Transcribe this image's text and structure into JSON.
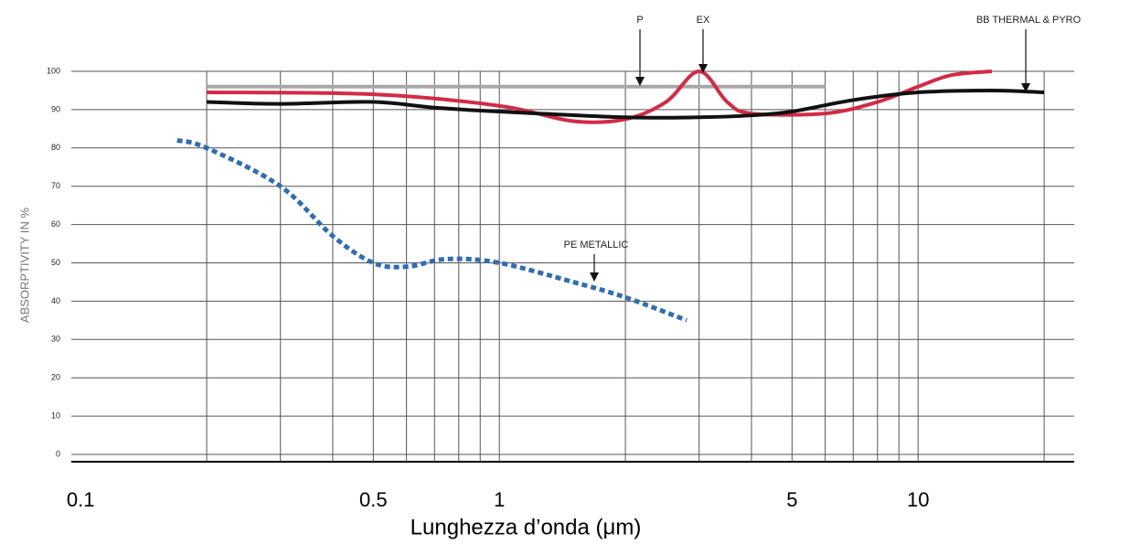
{
  "chart_data": {
    "type": "line",
    "xlabel": "Lunghezza d’onda (μm)",
    "ylabel": "ABSORPTIVITY IN  %",
    "xscale": "log",
    "xlim": [
      0.095,
      23.6
    ],
    "xticks": [
      0.1,
      0.5,
      1,
      5,
      10
    ],
    "xgrid": [
      0.2,
      0.3,
      0.4,
      0.5,
      0.6,
      0.7,
      0.8,
      0.9,
      1,
      2,
      3,
      4,
      5,
      6,
      7,
      8,
      9,
      10,
      20
    ],
    "ylim": [
      0,
      100
    ],
    "yticks": [
      0,
      10,
      20,
      30,
      40,
      50,
      60,
      70,
      80,
      90,
      100
    ],
    "grid": true,
    "series": [
      {
        "name": "P",
        "color": "#a8a8a8",
        "style": "solid",
        "x": [
          0.2,
          6
        ],
        "values": [
          96,
          96
        ]
      },
      {
        "name": "EX",
        "color": "#d42a45",
        "style": "solid",
        "x": [
          0.2,
          0.5,
          1,
          1.5,
          2,
          2.5,
          3,
          3.5,
          4,
          6,
          8,
          10,
          12,
          15
        ],
        "values": [
          94.5,
          94,
          91,
          87,
          87.5,
          92,
          100,
          92,
          89,
          89,
          92,
          96,
          99,
          100
        ]
      },
      {
        "name": "BB THERMAL & PYRO",
        "color": "#111111",
        "style": "solid",
        "x": [
          0.2,
          0.3,
          0.5,
          0.7,
          1,
          2,
          3,
          4,
          5,
          7,
          10,
          15,
          20
        ],
        "values": [
          92,
          91.5,
          92,
          90.5,
          89.5,
          88,
          88,
          88.5,
          89.5,
          92.5,
          94.5,
          95,
          94.5
        ]
      },
      {
        "name": "PE  METALLIC",
        "color": "#2f6db5",
        "style": "dotted",
        "x": [
          0.17,
          0.2,
          0.3,
          0.4,
          0.5,
          0.6,
          0.75,
          1,
          1.5,
          2,
          2.8
        ],
        "values": [
          82,
          80,
          70,
          57,
          50,
          49,
          51,
          50,
          45,
          41,
          35
        ]
      }
    ]
  }
}
